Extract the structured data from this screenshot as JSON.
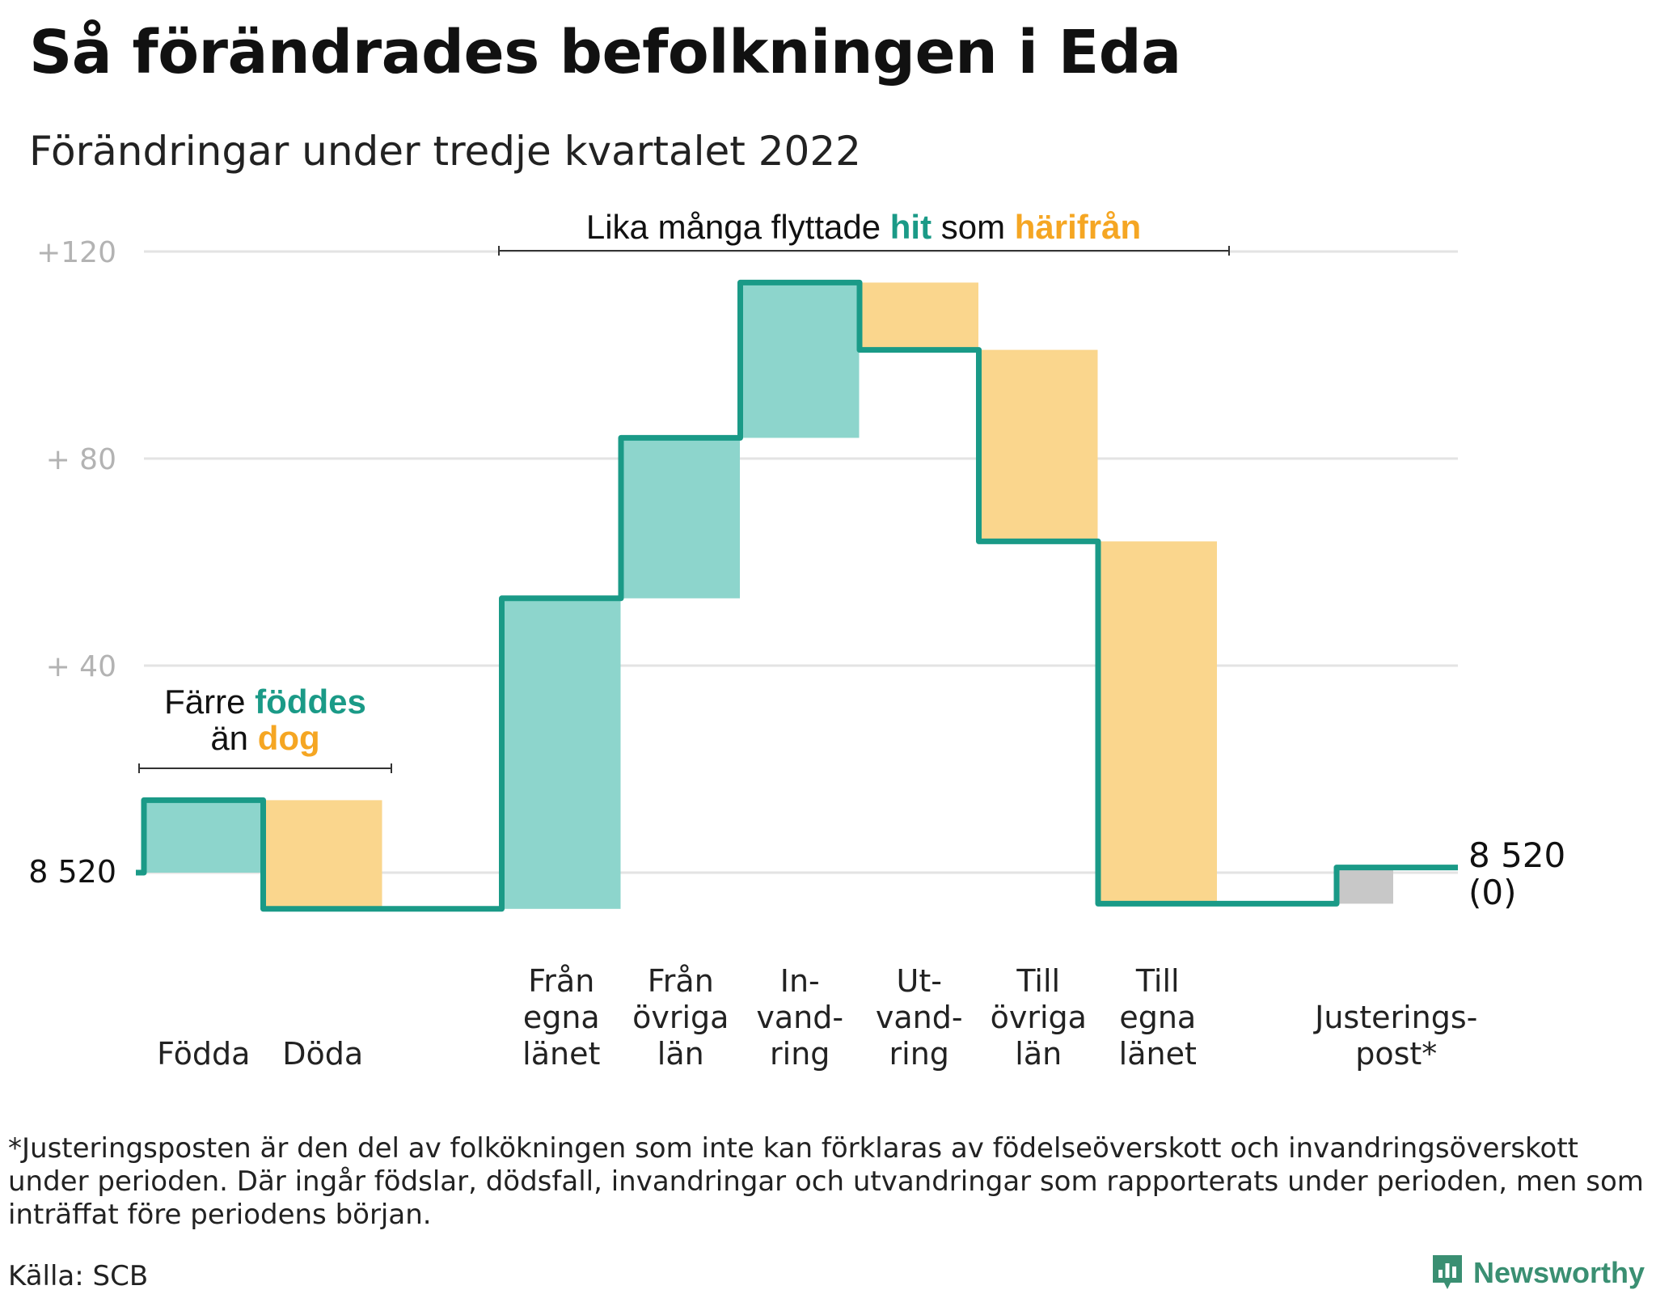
{
  "title": "Så förändrades befolkningen i Eda",
  "subtitle": "Förändringar under tredje kvartalet 2022",
  "annotations": {
    "top": {
      "pre": "Lika många flyttade ",
      "hit": "hit",
      "mid": " som ",
      "harifran": "härifrån"
    },
    "left_line1": {
      "pre": "Färre ",
      "em": "föddes"
    },
    "left_line2": {
      "pre": "än ",
      "em": "dog"
    }
  },
  "colors": {
    "teal": "#1a9a87",
    "inflow": "#8dd5cc",
    "outflow": "#fad68d",
    "orange_text": "#f5a623",
    "adjustment": "#c8c8c8",
    "grid": "#e3e3e3"
  },
  "chart_data": {
    "type": "waterfall",
    "base_value": 8520,
    "base_label": "8 520",
    "end_label": "8 520",
    "end_change_label": "(0)",
    "y_ticks": [
      {
        "offset": 120,
        "label": "+120"
      },
      {
        "offset": 80,
        "label": "+ 80"
      },
      {
        "offset": 40,
        "label": "+ 40"
      }
    ],
    "ylim_offset": [
      -7,
      120
    ],
    "grid": true,
    "steps": [
      {
        "category": [
          "Födda"
        ],
        "change": 14,
        "kind": "inflow"
      },
      {
        "category": [
          "Döda"
        ],
        "change": -21,
        "kind": "outflow"
      },
      {
        "category": [],
        "change": 0,
        "kind": "none"
      },
      {
        "category": [
          "Från",
          "egna",
          "länet"
        ],
        "change": 60,
        "kind": "inflow"
      },
      {
        "category": [
          "Från",
          "övriga",
          "län"
        ],
        "change": 31,
        "kind": "inflow"
      },
      {
        "category": [
          "In-",
          "vand-",
          "ring"
        ],
        "change": 30,
        "kind": "inflow"
      },
      {
        "category": [
          "Ut-",
          "vand-",
          "ring"
        ],
        "change": -13,
        "kind": "outflow"
      },
      {
        "category": [
          "Till",
          "övriga",
          "län"
        ],
        "change": -37,
        "kind": "outflow"
      },
      {
        "category": [
          "Till",
          "egna",
          "länet"
        ],
        "change": -70,
        "kind": "outflow"
      },
      {
        "category": [],
        "change": 0,
        "kind": "none"
      },
      {
        "category": [
          "Justerings-",
          "post*"
        ],
        "change": 7,
        "kind": "adjustment"
      }
    ]
  },
  "footnote": "*Justeringsposten är den del av folkökningen som inte kan förklaras av födelseöverskott och invandringsöverskott under perioden. Där ingår födslar, dödsfall, invandringar och utvandringar som rapporterats under perioden, men som inträffat före periodens början.",
  "source": "Källa: SCB",
  "brand": {
    "name": "Newsworthy",
    "logo_icon": "newsworthy-chart-icon"
  }
}
